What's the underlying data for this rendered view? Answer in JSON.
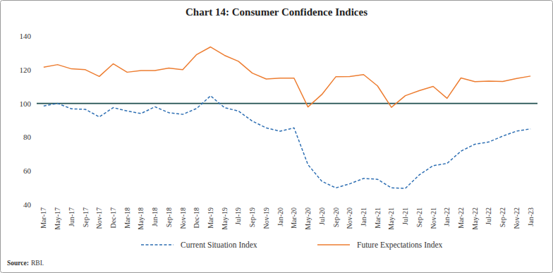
{
  "chart_data": {
    "type": "line",
    "title": "Chart 14: Consumer Confidence Indices",
    "source_label": "Source:",
    "source": "RBI.",
    "categories": [
      "Mar-17",
      "May-17",
      "Jun-17",
      "Sep-17",
      "Nov-17",
      "Dec-17",
      "Mar-18",
      "May-18",
      "Jun-18",
      "Sep-18",
      "Nov-18",
      "Dec-18",
      "Mar-19",
      "May-19",
      "Jul-19",
      "Sep-19",
      "Nov-19",
      "Jan-20",
      "Mar-20",
      "May-20",
      "Jul-20",
      "Sep-20",
      "Nov-20",
      "Jan-21",
      "Mar-21",
      "May-21",
      "Jul-21",
      "Sep-21",
      "Nov-21",
      "Jan-22",
      "Mar-22",
      "May-22",
      "Jul-22",
      "Sep-22",
      "Nov-22",
      "Jan-23"
    ],
    "series": [
      {
        "name": "Current Situation Index",
        "color": "#2e6fb3",
        "line_style": "dashed",
        "values": [
          98.5,
          100,
          96.8,
          96.5,
          92,
          97.5,
          95.5,
          94,
          98,
          94.5,
          93.5,
          97,
          104.5,
          97.5,
          95.5,
          89.5,
          85.5,
          83.5,
          85.5,
          63.7,
          53.8,
          49.9,
          52.3,
          55.5,
          55,
          49.9,
          49.6,
          57.6,
          63.1,
          64.4,
          71.7,
          75.8,
          77.1,
          80.6,
          83.6,
          84.9
        ]
      },
      {
        "name": "Future Expectations Index",
        "color": "#ed7d31",
        "line_style": "solid",
        "values": [
          121.5,
          123,
          120.5,
          120,
          116,
          123.5,
          118.5,
          119.5,
          119.5,
          121,
          120,
          129,
          133.5,
          128.5,
          125,
          118,
          114.5,
          115,
          115,
          97.9,
          105.3,
          115.8,
          115.9,
          117.1,
          110.4,
          97.7,
          104.6,
          107.6,
          110.1,
          103,
          115.1,
          112.9,
          113.2,
          113,
          114.8,
          116.2
        ]
      }
    ],
    "reference_line": 100,
    "ylim": [
      40,
      140
    ],
    "yticks": [
      40,
      60,
      80,
      100,
      120,
      140
    ],
    "grid": false,
    "legend": "bottom"
  }
}
